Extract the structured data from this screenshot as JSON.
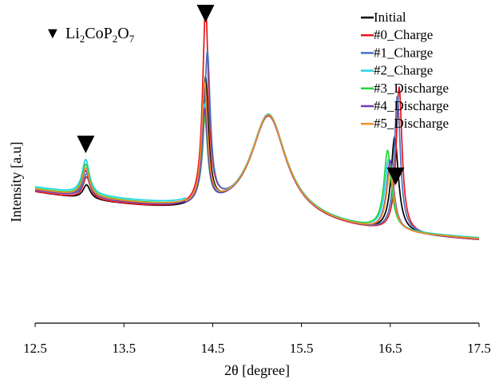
{
  "chart_data": {
    "type": "line",
    "xlabel": "2θ [degree]",
    "ylabel": "Intensity [a.u]",
    "xlim": [
      12.5,
      17.5
    ],
    "ylim": [
      0,
      100
    ],
    "x_ticks": [
      "12.5",
      "13.5",
      "14.5",
      "15.5",
      "16.5",
      "17.5"
    ],
    "grid": false,
    "legend_position": "top-right",
    "annotation": {
      "symbol": "▼",
      "label_parts": [
        "Li",
        "2",
        "CoP",
        "2",
        "O",
        "7"
      ]
    },
    "peak_markers_x": [
      13.07,
      14.42,
      16.56
    ],
    "series": [
      {
        "name": "Initial",
        "color": "#000000",
        "peaks": [
          [
            13.08,
            4.5,
            0.05
          ],
          [
            14.42,
            40,
            0.04
          ],
          [
            16.55,
            30,
            0.05
          ]
        ],
        "tail": 1.0,
        "base_offset": 0
      },
      {
        "name": "#0_Charge",
        "color": "#e8141c",
        "peaks": [
          [
            13.08,
            7,
            0.05
          ],
          [
            14.42,
            62,
            0.04
          ],
          [
            16.6,
            46,
            0.04
          ]
        ],
        "tail": 1.0,
        "base_offset": 0
      },
      {
        "name": "#1_Charge",
        "color": "#4a72c4",
        "peaks": [
          [
            13.08,
            7.5,
            0.05
          ],
          [
            14.44,
            48,
            0.04
          ],
          [
            16.58,
            43,
            0.04
          ]
        ],
        "tail": 1.0,
        "base_offset": 0.5
      },
      {
        "name": "#2_Charge",
        "color": "#1fd6e8",
        "peaks": [
          [
            13.07,
            11,
            0.05
          ],
          [
            14.41,
            31,
            0.04
          ],
          [
            16.48,
            22,
            0.05
          ]
        ],
        "tail": 1.0,
        "base_offset": 1.5
      },
      {
        "name": "#3_Discharge",
        "color": "#22d63a",
        "peaks": [
          [
            13.07,
            10,
            0.05
          ],
          [
            14.41,
            27,
            0.04
          ],
          [
            16.47,
            25,
            0.05
          ]
        ],
        "tail": 1.0,
        "base_offset": 1.0
      },
      {
        "name": "#4_Discharge",
        "color": "#6a3fb5",
        "peaks": [
          [
            13.07,
            8.5,
            0.05
          ],
          [
            14.41,
            30,
            0.04
          ],
          [
            16.5,
            22,
            0.05
          ]
        ],
        "tail": 1.0,
        "base_offset": 0.5
      },
      {
        "name": "#5_Discharge",
        "color": "#f0902c",
        "peaks": [
          [
            13.07,
            9,
            0.05
          ],
          [
            14.41,
            38,
            0.04
          ],
          [
            16.5,
            19,
            0.05
          ]
        ],
        "tail": 1.0,
        "base_offset": 0.8
      }
    ]
  }
}
